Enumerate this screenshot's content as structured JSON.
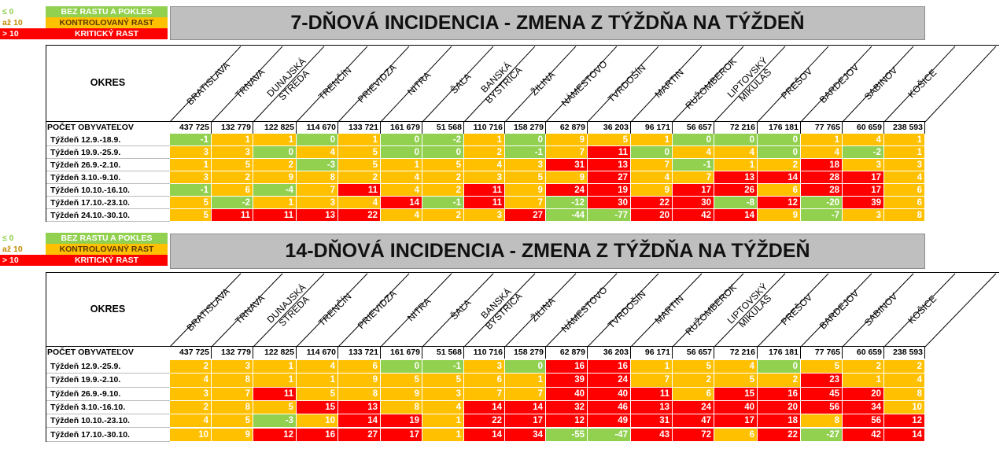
{
  "legend": [
    {
      "key": "≤ 0",
      "label": "BEZ RASTU A POKLES",
      "level": "green"
    },
    {
      "key": "až 10",
      "label": "KONTROLOVANÝ RAST",
      "level": "orange"
    },
    {
      "key": "> 10",
      "label": "KRITICKÝ RAST",
      "level": "red"
    }
  ],
  "colors": {
    "green": "#92d050",
    "orange": "#ffc000",
    "red": "#ff0000",
    "title_bg": "#bfbfbf"
  },
  "okres_label": "OKRES",
  "population_label": "POČET OBYVATEĽOV",
  "districts": [
    {
      "name": "BRATISLAVA",
      "population": "437 725"
    },
    {
      "name": "TRNAVA",
      "population": "132 779"
    },
    {
      "name": "DUNAJSKÁ STREDA",
      "population": "122 825"
    },
    {
      "name": "TRENČÍN",
      "population": "114 670"
    },
    {
      "name": "PRIEVIDZA",
      "population": "133 721"
    },
    {
      "name": "NITRA",
      "population": "161 679"
    },
    {
      "name": "ŠAĽA",
      "population": "51 568"
    },
    {
      "name": "BANSKÁ BYSTRICA",
      "population": "110 716"
    },
    {
      "name": "ŽILINA",
      "population": "158 279"
    },
    {
      "name": "NÁMESTOVO",
      "population": "62 879"
    },
    {
      "name": "TVRDOŠÍN",
      "population": "36 203"
    },
    {
      "name": "MARTIN",
      "population": "96 171"
    },
    {
      "name": "RUŽOMBEROK",
      "population": "56 657"
    },
    {
      "name": "LIPTOVSKÝ MIKULÁŠ",
      "population": "72 216"
    },
    {
      "name": "PREŠOV",
      "population": "176 181"
    },
    {
      "name": "BARDEJOV",
      "population": "77 765"
    },
    {
      "name": "SABINOV",
      "population": "60 659"
    },
    {
      "name": "KOŠICE",
      "population": "238 593"
    }
  ],
  "sections": [
    {
      "title": "7-DŇOVÁ INCIDENCIA - ZMENA Z TÝŽDŇA NA TÝŽDEŇ",
      "rows": [
        {
          "label": "Týždeň 12.9.-18.9.",
          "values": [
            -1,
            1,
            1,
            0,
            1,
            0,
            -2,
            1,
            0,
            9,
            5,
            1,
            0,
            0,
            0,
            1,
            4,
            1
          ]
        },
        {
          "label": "Týždeň 19.9.-25.9.",
          "values": [
            3,
            3,
            0,
            4,
            5,
            0,
            0,
            2,
            -1,
            7,
            11,
            0,
            4,
            4,
            0,
            4,
            -2,
            1
          ]
        },
        {
          "label": "Týždeň 26.9.-2.10.",
          "values": [
            1,
            5,
            2,
            -3,
            5,
            1,
            5,
            4,
            3,
            31,
            13,
            7,
            -1,
            1,
            2,
            18,
            3,
            3
          ]
        },
        {
          "label": "Týždeň 3.10.-9.10.",
          "values": [
            3,
            2,
            9,
            8,
            2,
            4,
            2,
            3,
            5,
            9,
            27,
            4,
            7,
            13,
            14,
            28,
            17,
            4
          ]
        },
        {
          "label": "Týždeň 10.10.-16.10.",
          "values": [
            -1,
            6,
            -4,
            7,
            11,
            4,
            2,
            11,
            9,
            24,
            19,
            9,
            17,
            26,
            6,
            28,
            17,
            6
          ]
        },
        {
          "label": "Týždeň 17.10.-23.10.",
          "values": [
            5,
            -2,
            1,
            3,
            4,
            14,
            -1,
            11,
            7,
            -12,
            30,
            22,
            30,
            -8,
            12,
            -20,
            39,
            6
          ]
        },
        {
          "label": "Týždeň 24.10.-30.10.",
          "values": [
            5,
            11,
            11,
            13,
            22,
            4,
            2,
            3,
            27,
            -44,
            -77,
            20,
            42,
            14,
            9,
            -7,
            3,
            8
          ]
        }
      ]
    },
    {
      "title": "14-DŇOVÁ INCIDENCIA - ZMENA Z TÝŽDŇA NA TÝŽDEŇ",
      "rows": [
        {
          "label": "Týždeň 12.9.-25.9.",
          "values": [
            2,
            3,
            1,
            4,
            6,
            0,
            -1,
            3,
            0,
            16,
            16,
            1,
            5,
            4,
            0,
            5,
            2,
            2
          ]
        },
        {
          "label": "Týždeň 19.9.-2.10.",
          "values": [
            4,
            8,
            1,
            1,
            9,
            5,
            5,
            6,
            1,
            39,
            24,
            7,
            2,
            5,
            2,
            23,
            1,
            4
          ]
        },
        {
          "label": "Týždeň 26.9.-9.10.",
          "values": [
            3,
            7,
            11,
            5,
            8,
            9,
            3,
            7,
            7,
            40,
            40,
            11,
            6,
            15,
            16,
            45,
            20,
            8
          ]
        },
        {
          "label": "Týždeň 3.10.-16.10.",
          "values": [
            2,
            8,
            5,
            15,
            13,
            8,
            4,
            14,
            14,
            32,
            46,
            13,
            24,
            40,
            20,
            56,
            34,
            10
          ]
        },
        {
          "label": "Týždeň 10.10.-23.10.",
          "values": [
            4,
            5,
            -3,
            10,
            14,
            19,
            1,
            22,
            17,
            12,
            49,
            31,
            47,
            17,
            18,
            8,
            56,
            12
          ]
        },
        {
          "label": "Týždeň 17.10.-30.10.",
          "values": [
            10,
            9,
            12,
            16,
            27,
            17,
            1,
            14,
            34,
            -55,
            -47,
            43,
            72,
            6,
            22,
            -27,
            42,
            14
          ]
        }
      ]
    }
  ]
}
